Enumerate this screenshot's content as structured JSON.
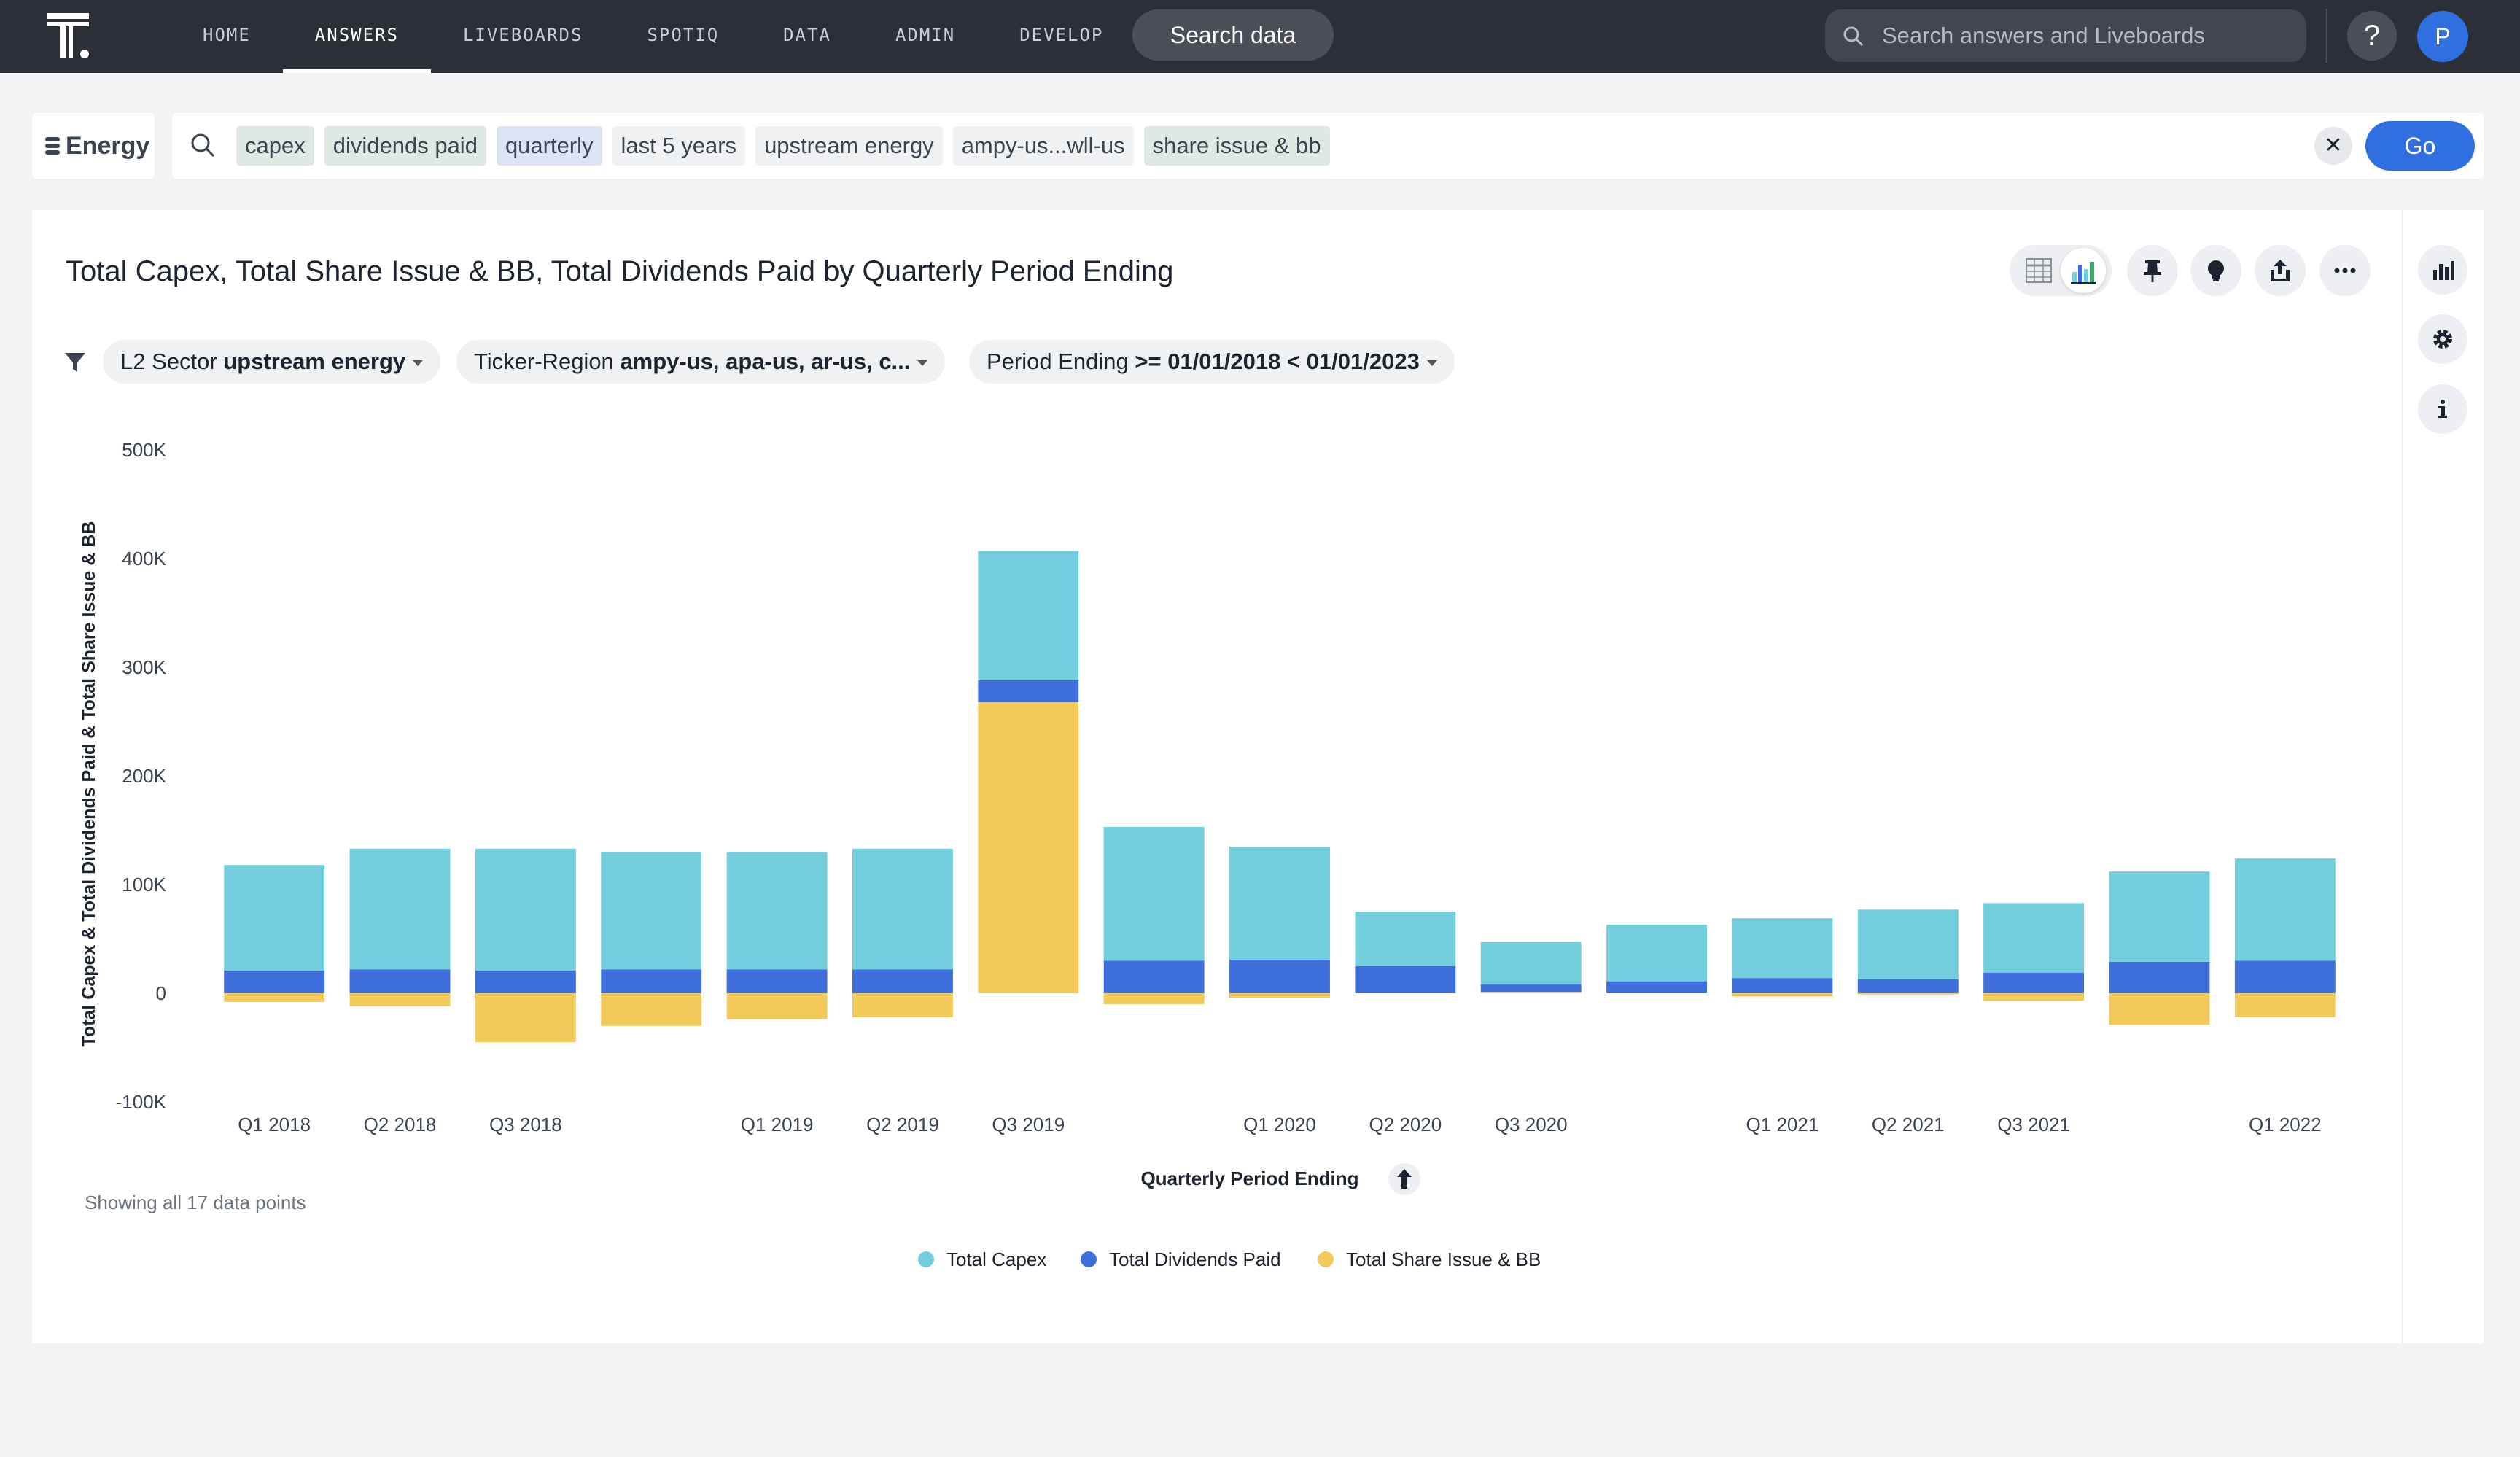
{
  "nav": {
    "links": [
      "HOME",
      "ANSWERS",
      "LIVEBOARDS",
      "SPOTIQ",
      "DATA",
      "ADMIN",
      "DEVELOP"
    ],
    "active_index": 1,
    "search_data_label": "Search data",
    "global_search_placeholder": "Search answers and Liveboards",
    "help_label": "?",
    "avatar_initial": "P"
  },
  "search": {
    "source": "Energy",
    "tokens": [
      {
        "text": "capex",
        "kind": "col"
      },
      {
        "text": "dividends paid",
        "kind": "col"
      },
      {
        "text": "quarterly",
        "kind": "kw"
      },
      {
        "text": "last 5 years",
        "kind": "plain"
      },
      {
        "text": "upstream energy",
        "kind": "plain"
      },
      {
        "text": "ampy-us...wll-us",
        "kind": "plain"
      },
      {
        "text": "share issue & bb",
        "kind": "col"
      }
    ],
    "clear_label": "✕",
    "go_label": "Go"
  },
  "answer": {
    "title": "Total Capex, Total Share Issue & BB, Total Dividends Paid by Quarterly Period Ending",
    "filters": [
      {
        "label": "L2 Sector",
        "value": "upstream energy"
      },
      {
        "label": "Ticker-Region",
        "value": "ampy-us, apa-us, ar-us, c..."
      },
      {
        "label": "Period Ending",
        "value": ">= 01/01/2018 < 01/01/2023"
      }
    ],
    "status": "Showing all 17 data points",
    "sort_icon": "arrow-up-icon"
  },
  "colors": {
    "capex": "#72cedd",
    "dividends": "#3f6fdc",
    "share_issue": "#f3c95a",
    "primary": "#2f6fe0"
  },
  "chart_data": {
    "type": "bar",
    "stacked": true,
    "xlabel": "Quarterly Period Ending",
    "ylabel": "Total Capex & Total Dividends Paid & Total Share Issue & BB",
    "ylim": [
      -100000,
      500000
    ],
    "yticks": [
      500000,
      400000,
      300000,
      200000,
      100000,
      0,
      -100000
    ],
    "ytick_labels": [
      "500K",
      "400K",
      "300K",
      "200K",
      "100K",
      "0",
      "-100K"
    ],
    "categories": [
      "Q1 2018",
      "Q2 2018",
      "Q3 2018",
      "Q4 2018",
      "Q1 2019",
      "Q2 2019",
      "Q3 2019",
      "Q4 2019",
      "Q1 2020",
      "Q2 2020",
      "Q3 2020",
      "Q4 2020",
      "Q1 2021",
      "Q2 2021",
      "Q3 2021",
      "Q4 2021",
      "Q1 2022"
    ],
    "shown_tick_labels": [
      "Q1 2018",
      "Q2 2018",
      "Q3 2018",
      "Q1 2019",
      "Q2 2019",
      "Q3 2019",
      "Q1 2020",
      "Q2 2020",
      "Q3 2020",
      "Q1 2021",
      "Q2 2021",
      "Q3 2021",
      "Q1 2022"
    ],
    "series": [
      {
        "name": "Total Share Issue & BB",
        "values": [
          -8000,
          -12000,
          -45000,
          -30000,
          -24000,
          -22000,
          268000,
          -10000,
          -4000,
          0,
          1000,
          0,
          -3000,
          -1000,
          -7000,
          -29000,
          -22000
        ]
      },
      {
        "name": "Total Dividends Paid",
        "values": [
          21000,
          22000,
          21000,
          22000,
          22000,
          22000,
          20000,
          30000,
          31000,
          25000,
          7000,
          11000,
          14000,
          13000,
          19000,
          29000,
          30000
        ]
      },
      {
        "name": "Total Capex",
        "values": [
          97000,
          111000,
          112000,
          108000,
          108000,
          111000,
          119000,
          123000,
          104000,
          50000,
          39000,
          52000,
          55000,
          64000,
          64000,
          83000,
          94000
        ]
      }
    ],
    "legend": [
      "Total Capex",
      "Total Dividends Paid",
      "Total Share Issue & BB"
    ],
    "legend_position": "bottom"
  }
}
